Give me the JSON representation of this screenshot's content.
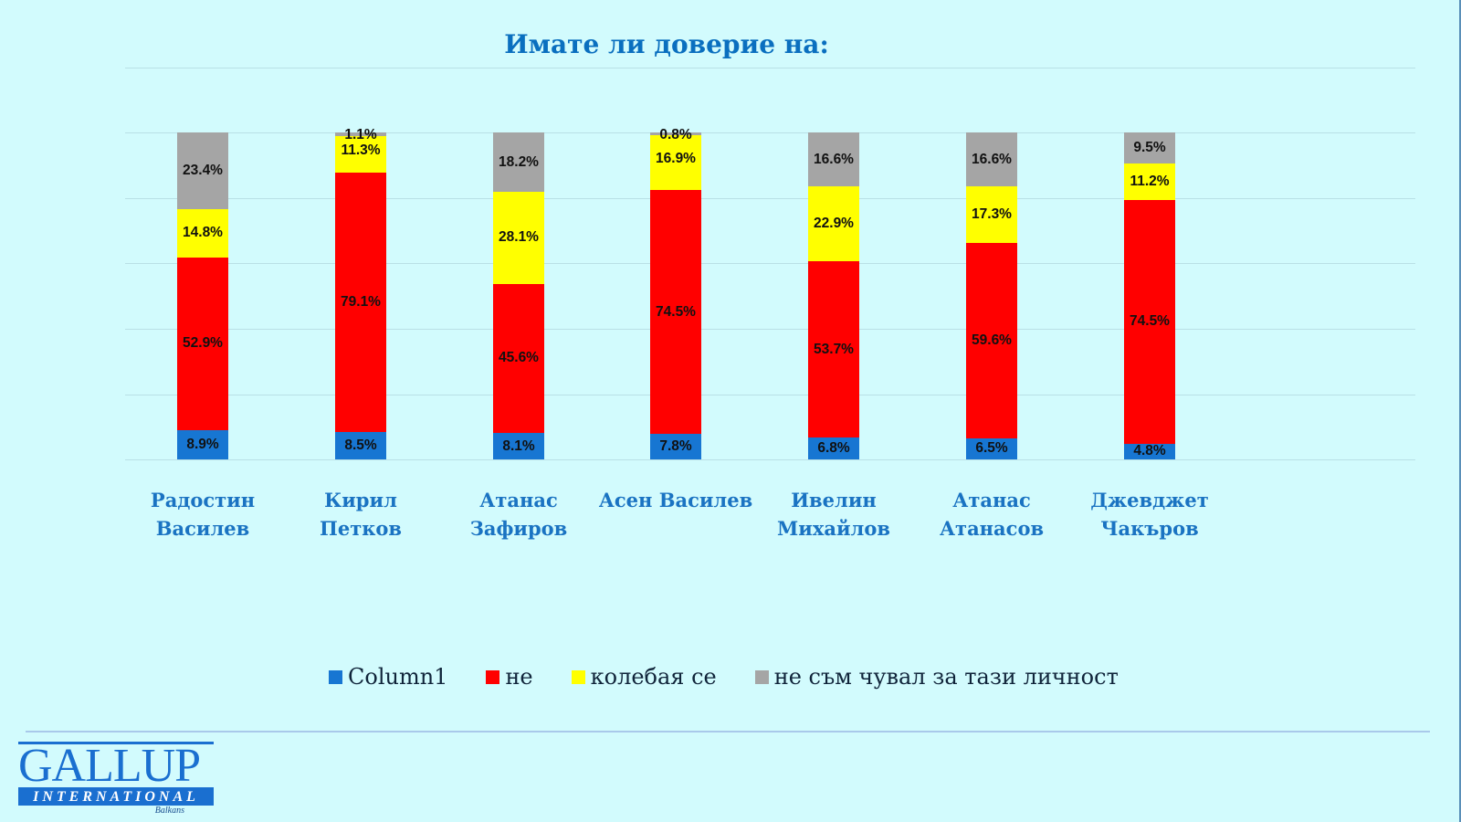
{
  "title": "Имате  ли доверие на:",
  "colors": {
    "background": "#d2fbfd",
    "title": "#0a6fbf",
    "series": [
      "#1776d2",
      "#ff0000",
      "#ffff00",
      "#a5a5a5"
    ]
  },
  "legend": [
    {
      "label": "Column1",
      "color": "#1776d2"
    },
    {
      "label": "не",
      "color": "#ff0000"
    },
    {
      "label": "колебая се",
      "color": "#ffff00"
    },
    {
      "label": "не съм чувал за тази личност",
      "color": "#a5a5a5"
    }
  ],
  "categories": [
    [
      "Радостин",
      "Василев"
    ],
    [
      "Кирил",
      "Петков"
    ],
    [
      "Атанас",
      "Зафиров"
    ],
    [
      "Асен Василев"
    ],
    [
      "Ивелин",
      "Михайлов"
    ],
    [
      "Атанас",
      "Атанасов"
    ],
    [
      "Джевджет",
      "Чакъров"
    ]
  ],
  "bars": [
    {
      "segments": [
        {
          "value": 8.9,
          "label": "8.9%"
        },
        {
          "value": 52.9,
          "label": "52.9%"
        },
        {
          "value": 14.8,
          "label": "14.8%"
        },
        {
          "value": 23.4,
          "label": "23.4%"
        }
      ]
    },
    {
      "segments": [
        {
          "value": 8.5,
          "label": "8.5%"
        },
        {
          "value": 79.1,
          "label": "79.1%"
        },
        {
          "value": 11.3,
          "label": "11.3%"
        },
        {
          "value": 1.1,
          "label": "1.1%"
        }
      ]
    },
    {
      "segments": [
        {
          "value": 8.1,
          "label": "8.1%"
        },
        {
          "value": 45.6,
          "label": "45.6%"
        },
        {
          "value": 28.1,
          "label": "28.1%"
        },
        {
          "value": 18.2,
          "label": "18.2%"
        }
      ]
    },
    {
      "segments": [
        {
          "value": 7.8,
          "label": "7.8%"
        },
        {
          "value": 74.5,
          "label": "74.5%"
        },
        {
          "value": 16.9,
          "label": "16.9%"
        },
        {
          "value": 0.8,
          "label": "0.8%"
        }
      ]
    },
    {
      "segments": [
        {
          "value": 6.8,
          "label": "6.8%"
        },
        {
          "value": 53.7,
          "label": "53.7%"
        },
        {
          "value": 22.9,
          "label": "22.9%"
        },
        {
          "value": 16.6,
          "label": "16.6%"
        }
      ]
    },
    {
      "segments": [
        {
          "value": 6.5,
          "label": "6.5%"
        },
        {
          "value": 59.6,
          "label": "59.6%"
        },
        {
          "value": 17.3,
          "label": "17.3%"
        },
        {
          "value": 16.6,
          "label": "16.6%"
        }
      ]
    },
    {
      "segments": [
        {
          "value": 4.8,
          "label": "4.8%"
        },
        {
          "value": 74.5,
          "label": "74.5%"
        },
        {
          "value": 11.2,
          "label": "11.2%"
        },
        {
          "value": 9.5,
          "label": "9.5%"
        }
      ]
    }
  ],
  "logo": {
    "name": "GALLUP",
    "subtitle": "INTERNATIONAL",
    "region": "Balkans"
  },
  "chart_data": {
    "type": "bar",
    "stacked": "percent",
    "title": "Имате  ли доверие на:",
    "xlabel": "",
    "ylabel": "",
    "ylim": [
      0,
      100
    ],
    "grid": true,
    "legend_position": "bottom",
    "categories": [
      "Радостин Василев",
      "Кирил Петков",
      "Атанас Зафиров",
      "Асен Василев",
      "Ивелин Михайлов",
      "Атанас Атанасов",
      "Джевджет Чакъров"
    ],
    "series": [
      {
        "name": "Column1",
        "color": "#1776d2",
        "values": [
          8.9,
          8.5,
          8.1,
          7.8,
          6.8,
          6.5,
          4.8
        ]
      },
      {
        "name": "не",
        "color": "#ff0000",
        "values": [
          52.9,
          79.1,
          45.6,
          74.5,
          53.7,
          59.6,
          74.5
        ]
      },
      {
        "name": "колебая се",
        "color": "#ffff00",
        "values": [
          14.8,
          11.3,
          28.1,
          16.9,
          22.9,
          17.3,
          11.2
        ]
      },
      {
        "name": "не съм чувал за тази личност",
        "color": "#a5a5a5",
        "values": [
          23.4,
          1.1,
          18.2,
          0.8,
          16.6,
          16.6,
          9.5
        ]
      }
    ],
    "data_labels": true,
    "data_label_format": "0.0%"
  }
}
